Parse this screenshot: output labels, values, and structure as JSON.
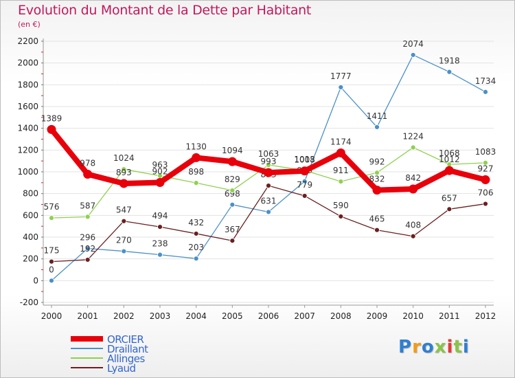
{
  "chart_data": {
    "type": "line",
    "title": "Evolution du Montant de la Dette par Habitant",
    "subtitle": "(en €)",
    "categories": [
      "2000",
      "2001",
      "2002",
      "2003",
      "2004",
      "2005",
      "2006",
      "2007",
      "2008",
      "2009",
      "2010",
      "2011",
      "2012"
    ],
    "ylim": [
      -200,
      2200
    ],
    "yticks": [
      -200,
      0,
      200,
      400,
      600,
      800,
      1000,
      1200,
      1400,
      1600,
      1800,
      2000,
      2200
    ],
    "series": [
      {
        "name": "ORCIER",
        "color": "#e8000b",
        "values": [
          1389,
          978,
          893,
          902,
          1130,
          1094,
          993,
          1008,
          1174,
          832,
          842,
          1012,
          927
        ]
      },
      {
        "name": "Draillant",
        "color": "#4a90c8",
        "values": [
          0,
          296,
          270,
          238,
          203,
          698,
          631,
          913,
          1777,
          1411,
          2074,
          1918,
          1734
        ]
      },
      {
        "name": "Allinges",
        "color": "#8fd14f",
        "values": [
          576,
          587,
          1024,
          963,
          898,
          829,
          1063,
          1013,
          911,
          992,
          1224,
          1068,
          1083
        ]
      },
      {
        "name": "Lyaud",
        "color": "#6b1f1f",
        "values": [
          175,
          192,
          547,
          494,
          432,
          367,
          873,
          779,
          590,
          465,
          408,
          657,
          706
        ]
      }
    ],
    "grid": "horizontal",
    "legend": "bottom-left"
  },
  "logo": {
    "letters": [
      "P",
      "r",
      "o",
      "x",
      "i",
      "t",
      "i"
    ],
    "colors": [
      "#2f7fd1",
      "#f39c12",
      "#2f7fd1",
      "#8bc34a",
      "#e53935",
      "#8bc34a",
      "#2f7fd1"
    ]
  }
}
